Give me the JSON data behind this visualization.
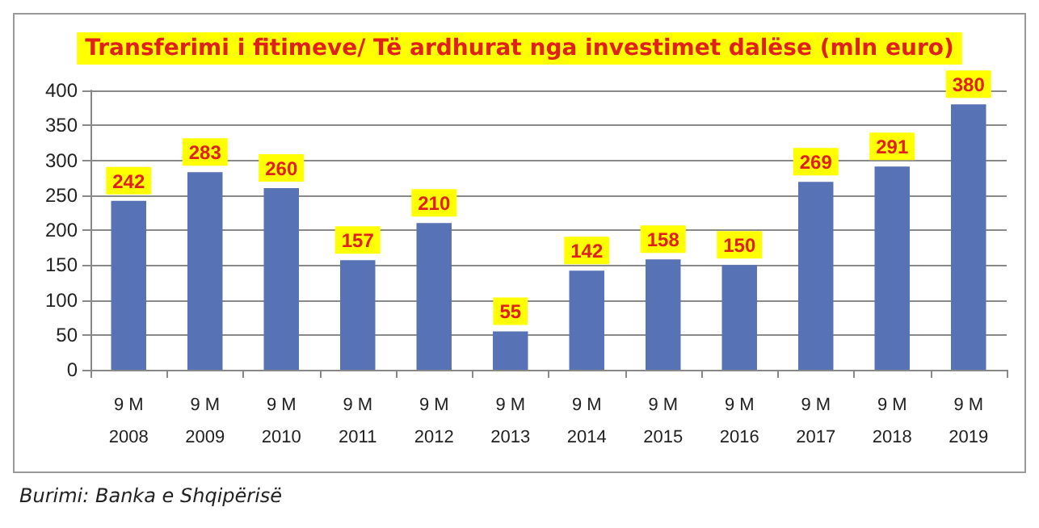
{
  "chart_data": {
    "type": "bar",
    "title": "Transferimi i fitimeve/ Të ardhurat nga investimet dalëse (mln euro)",
    "categories": [
      "9 M\n2008",
      "9 M\n2009",
      "9 M\n2010",
      "9 M\n2011",
      "9 M\n2012",
      "9 M\n2013",
      "9 M\n2014",
      "9 M\n2015",
      "9 M\n2016",
      "9 M\n2017",
      "9 M\n2018",
      "9 M\n2019"
    ],
    "values": [
      242,
      283,
      260,
      157,
      210,
      55,
      142,
      158,
      150,
      269,
      291,
      380
    ],
    "color": "#5873b5",
    "ylim": [
      0,
      400
    ],
    "yticks": [
      0,
      50,
      100,
      150,
      200,
      250,
      300,
      350,
      400
    ],
    "grid": "y",
    "data_labels": true,
    "annotations": [
      "Burimi: Banka e Shqipërisë"
    ]
  }
}
